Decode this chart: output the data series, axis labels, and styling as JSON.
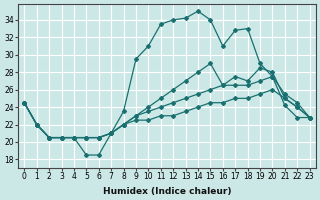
{
  "title": "",
  "xlabel": "Humidex (Indice chaleur)",
  "ylabel": "",
  "bg_color": "#cce8e6",
  "grid_color": "#ffffff",
  "line_color": "#1a7070",
  "xlim": [
    -0.5,
    23.5
  ],
  "ylim": [
    17,
    35.8
  ],
  "xticks": [
    0,
    1,
    2,
    3,
    4,
    5,
    6,
    7,
    8,
    9,
    10,
    11,
    12,
    13,
    14,
    15,
    16,
    17,
    18,
    19,
    20,
    21,
    22,
    23
  ],
  "yticks": [
    18,
    20,
    22,
    24,
    26,
    28,
    30,
    32,
    34
  ],
  "series": [
    [
      24.5,
      22.0,
      20.5,
      20.5,
      20.5,
      18.5,
      18.5,
      21.0,
      23.5,
      29.5,
      31.0,
      33.5,
      34.0,
      34.2,
      35.0,
      34.0,
      31.0,
      32.8,
      33.0,
      29.0,
      27.5,
      24.2,
      22.8,
      22.8
    ],
    [
      24.5,
      22.0,
      20.5,
      20.5,
      20.5,
      20.5,
      20.5,
      21.0,
      22.0,
      23.0,
      24.0,
      25.0,
      26.0,
      27.0,
      28.0,
      29.0,
      26.5,
      27.5,
      27.0,
      28.5,
      28.0,
      25.0,
      24.0,
      22.8
    ],
    [
      24.5,
      22.0,
      20.5,
      20.5,
      20.5,
      20.5,
      20.5,
      21.0,
      22.0,
      23.0,
      23.5,
      24.0,
      24.5,
      25.0,
      25.5,
      26.0,
      26.5,
      26.5,
      26.5,
      27.0,
      27.5,
      25.5,
      24.5,
      22.8
    ],
    [
      24.5,
      22.0,
      20.5,
      20.5,
      20.5,
      20.5,
      20.5,
      21.0,
      22.0,
      22.5,
      22.5,
      23.0,
      23.0,
      23.5,
      24.0,
      24.5,
      24.5,
      25.0,
      25.0,
      25.5,
      26.0,
      25.0,
      24.0,
      22.8
    ]
  ],
  "tick_fontsize": 5.5,
  "xlabel_fontsize": 6.5
}
